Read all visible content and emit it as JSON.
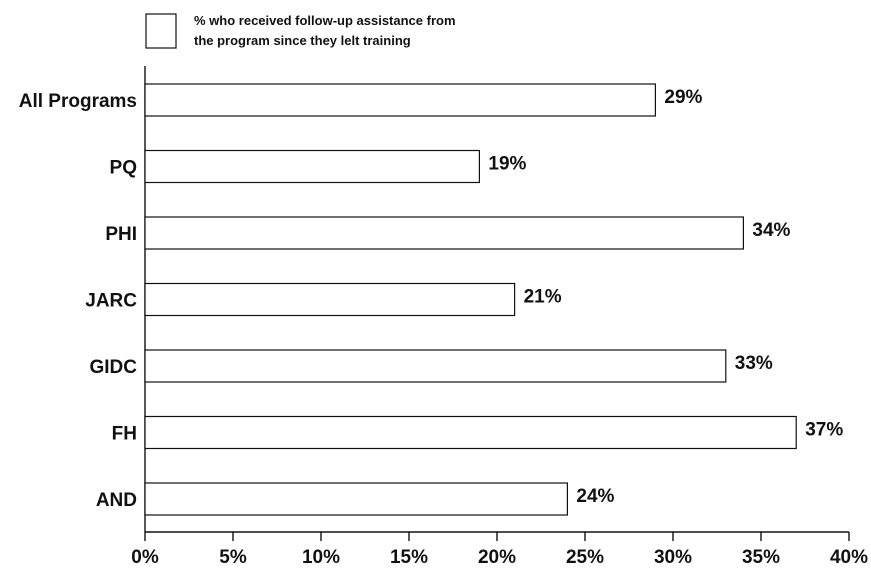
{
  "chart_data": {
    "type": "bar",
    "orientation": "horizontal",
    "categories": [
      "All Programs",
      "PQ",
      "PHI",
      "JARC",
      "GIDC",
      "FH",
      "AND"
    ],
    "series": [
      {
        "name": "% who received follow-up assistance from the program since they left training",
        "values": [
          29,
          19,
          34,
          21,
          33,
          37,
          24
        ]
      }
    ],
    "value_labels": [
      "29%",
      "19%",
      "34%",
      "21%",
      "33%",
      "37%",
      "24%"
    ],
    "xlim": [
      0,
      40
    ],
    "x_ticks": [
      0,
      5,
      10,
      15,
      20,
      25,
      30,
      35,
      40
    ],
    "x_tick_labels": [
      "0%",
      "5%",
      "10%",
      "15%",
      "20%",
      "25%",
      "30%",
      "35%",
      "40%"
    ],
    "legend": {
      "placement": "top-left",
      "line1": "% who received follow-up assistance from",
      "line2": "the program since they lelt training"
    },
    "grid": false,
    "bar_fill": "#ffffff",
    "bar_stroke": "#111111"
  }
}
